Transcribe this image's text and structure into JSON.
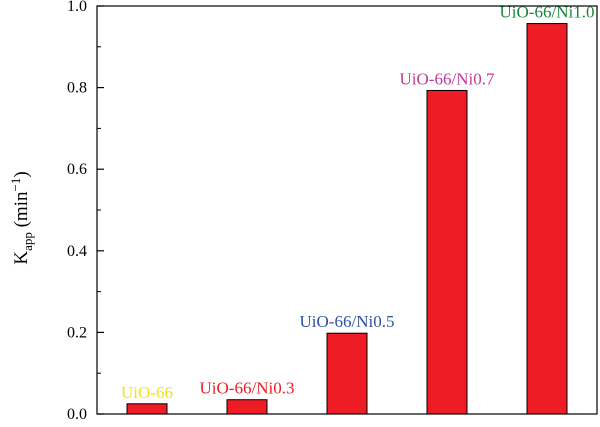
{
  "chart_data": {
    "type": "bar",
    "title": "",
    "xlabel": "",
    "ylabel": {
      "base": "K",
      "sub": "app",
      "unit_prefix": " (min",
      "unit_sup": "−1",
      "unit_suffix": ")"
    },
    "ylim": [
      0.0,
      1.0
    ],
    "yticks": [
      "0.0",
      "0.2",
      "0.4",
      "0.6",
      "0.8",
      "1.0"
    ],
    "grid": false,
    "categories": [
      "UiO-66",
      "UiO-66/Ni0.3",
      "UiO-66/Ni0.5",
      "UiO-66/Ni0.7",
      "UiO-66/Ni1.0"
    ],
    "values": [
      0.025,
      0.035,
      0.198,
      0.793,
      0.957
    ],
    "bar_color": "#ee1c25",
    "label_colors": [
      "#f2e500",
      "#ee1c25",
      "#2e4f9e",
      "#c0399a",
      "#19853a"
    ]
  }
}
